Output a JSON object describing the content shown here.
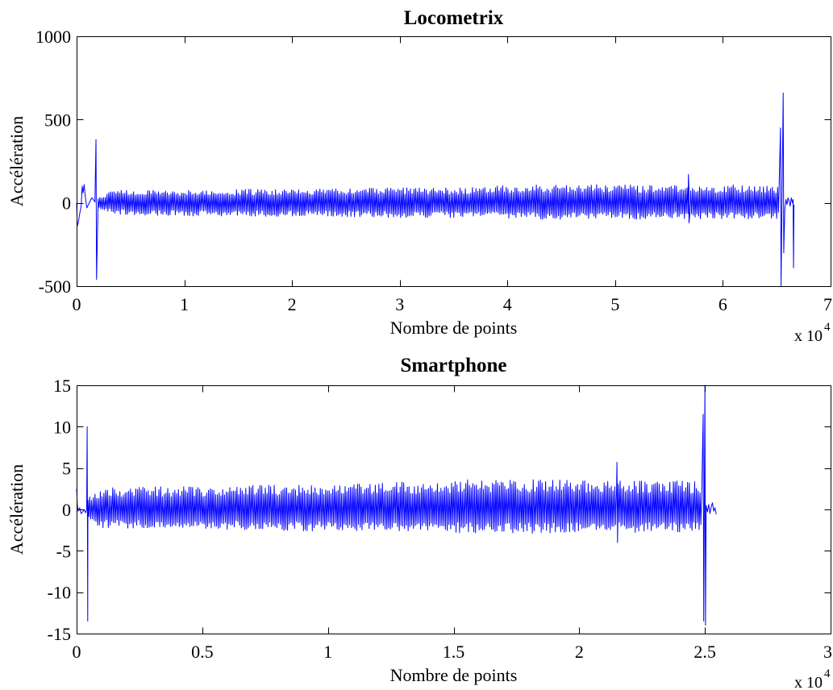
{
  "chart_data": [
    {
      "type": "line",
      "title": "Locometrix",
      "xlabel": "Nombre de points",
      "ylabel": "Accélération",
      "x_multiplier": "x 10",
      "x_multiplier_exponent": "4",
      "xlim": [
        0,
        70000
      ],
      "ylim": [
        -500,
        1000
      ],
      "xticks": [
        0,
        10000,
        20000,
        30000,
        40000,
        50000,
        60000,
        70000
      ],
      "xtick_labels": [
        "0",
        "1",
        "2",
        "3",
        "4",
        "5",
        "6",
        "7"
      ],
      "yticks": [
        -500,
        0,
        500,
        1000
      ],
      "ytick_labels": [
        "-500",
        "0",
        "500",
        "1000"
      ],
      "grid": false,
      "line_color": "#0000ff",
      "series": [
        {
          "points_start": [
            [
              0,
              0
            ],
            [
              60,
              -140
            ],
            [
              150,
              -120
            ],
            [
              300,
              -60
            ],
            [
              420,
              -20
            ],
            [
              520,
              100
            ],
            [
              600,
              60
            ],
            [
              700,
              110
            ],
            [
              820,
              30
            ],
            [
              950,
              -30
            ],
            [
              1100,
              -10
            ],
            [
              1250,
              10
            ],
            [
              1400,
              30
            ],
            [
              1550,
              20
            ],
            [
              1700,
              5
            ]
          ],
          "spikes": [
            [
              1800,
              -460,
              380
            ],
            [
              56800,
              -120,
              170
            ],
            [
              65350,
              -500,
              450
            ],
            [
              65600,
              -300,
              660
            ]
          ],
          "envelope": {
            "x": [
              2000,
              3500,
              10000,
              15000,
              20000,
              25000,
              30000,
              35000,
              40000,
              45000,
              50000,
              55000,
              60000,
              65200
            ],
            "max": [
              30,
              80,
              75,
              80,
              85,
              85,
              95,
              90,
              105,
              110,
              110,
              105,
              110,
              105
            ],
            "min": [
              -40,
              -70,
              -78,
              -80,
              -82,
              -85,
              -90,
              -88,
              -95,
              -100,
              -98,
              -98,
              -100,
              -95
            ]
          },
          "points_end": [
            [
              65750,
              -40
            ],
            [
              65850,
              20
            ],
            [
              65950,
              -10
            ],
            [
              66050,
              30
            ],
            [
              66150,
              10
            ],
            [
              66250,
              -20
            ],
            [
              66350,
              30
            ],
            [
              66450,
              0
            ],
            [
              66520,
              20
            ],
            [
              66560,
              -390
            ],
            [
              66600,
              -10
            ]
          ]
        }
      ]
    },
    {
      "type": "line",
      "title": "Smartphone",
      "xlabel": "Nombre de points",
      "ylabel": "Accélération",
      "x_multiplier": "x 10",
      "x_multiplier_exponent": "4",
      "xlim": [
        0,
        30000
      ],
      "ylim": [
        -15,
        15
      ],
      "xticks": [
        0,
        5000,
        10000,
        15000,
        20000,
        25000,
        30000
      ],
      "xtick_labels": [
        "0",
        "0.5",
        "1",
        "1.5",
        "2",
        "2.5",
        "3"
      ],
      "yticks": [
        -15,
        -10,
        -5,
        0,
        5,
        10,
        15
      ],
      "ytick_labels": [
        "-15",
        "-10",
        "-5",
        "0",
        "5",
        "10",
        "15"
      ],
      "grid": false,
      "line_color": "#0000ff",
      "series": [
        {
          "points_start": [
            [
              0,
              2.5
            ],
            [
              30,
              0.5
            ],
            [
              60,
              -0.2
            ],
            [
              120,
              0.2
            ],
            [
              180,
              -0.5
            ],
            [
              240,
              -0.3
            ],
            [
              300,
              0
            ],
            [
              360,
              -0.4
            ],
            [
              400,
              0
            ]
          ],
          "spikes": [
            [
              420,
              -13.5,
              10
            ],
            [
              21500,
              -4,
              5.7
            ],
            [
              24930,
              -13.5,
              11.5
            ],
            [
              25000,
              -14,
              15
            ]
          ],
          "envelope": {
            "x": [
              450,
              1000,
              3000,
              5000,
              7000,
              9000,
              11000,
              13000,
              15000,
              17000,
              19000,
              21000,
              23000,
              24900
            ],
            "max": [
              1.5,
              2.6,
              2.8,
              2.7,
              2.9,
              3.0,
              3.1,
              3.3,
              3.5,
              3.8,
              3.6,
              3.5,
              3.5,
              3.4
            ],
            "min": [
              -1.5,
              -2.2,
              -2.3,
              -2.3,
              -2.5,
              -2.6,
              -2.6,
              -2.7,
              -2.8,
              -2.9,
              -2.9,
              -2.8,
              -2.8,
              -2.7
            ]
          },
          "points_end": [
            [
              25050,
              0.5
            ],
            [
              25100,
              -0.3
            ],
            [
              25150,
              0.6
            ],
            [
              25200,
              -0.5
            ],
            [
              25250,
              0.3
            ],
            [
              25300,
              0.8
            ],
            [
              25350,
              -0.2
            ],
            [
              25400,
              0.2
            ],
            [
              25450,
              -0.6
            ]
          ]
        }
      ]
    }
  ]
}
